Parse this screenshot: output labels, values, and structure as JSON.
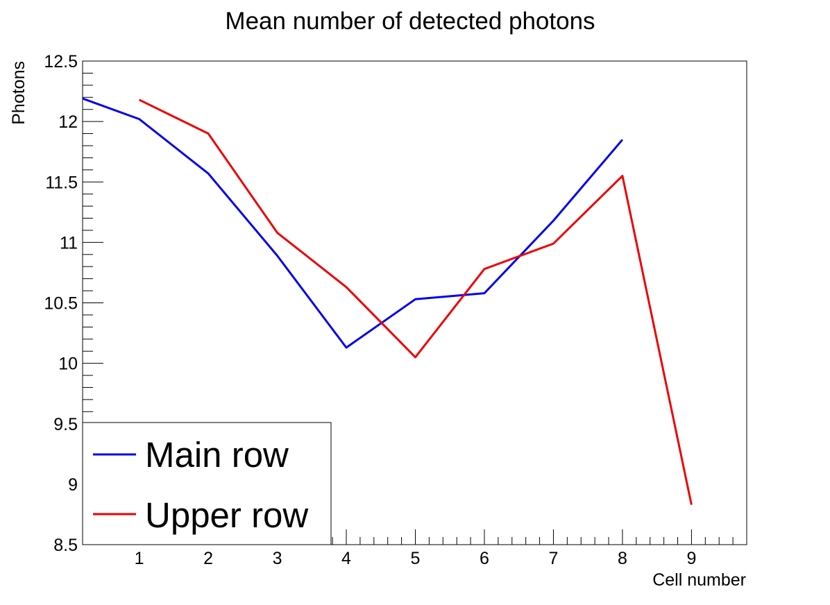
{
  "chart_data": {
    "type": "line",
    "title": "Mean number of detected photons",
    "xlabel": "Cell number",
    "ylabel": "Photons",
    "xlim": [
      0.18,
      9.8
    ],
    "ylim": [
      8.5,
      12.5
    ],
    "x_ticks": [
      1,
      2,
      3,
      4,
      5,
      6,
      7,
      8,
      9
    ],
    "x_tick_labels": [
      "1",
      "2",
      "3",
      "4",
      "5",
      "6",
      "7",
      "8",
      "9"
    ],
    "y_ticks": [
      8.5,
      9,
      9.5,
      10,
      10.5,
      11,
      11.5,
      12,
      12.5
    ],
    "y_tick_labels": [
      "8.5",
      "9",
      "9.5",
      "10",
      "10.5",
      "11",
      "11.5",
      "12",
      "12.5"
    ],
    "grid": false,
    "legend_position": "bottom-left",
    "series": [
      {
        "name": "Main row",
        "color": "#0000ee",
        "x": [
          0.18,
          1,
          2,
          3,
          4,
          5,
          6,
          7,
          8
        ],
        "values": [
          12.19,
          12.02,
          11.57,
          10.89,
          10.13,
          10.53,
          10.58,
          11.18,
          11.85
        ]
      },
      {
        "name": "Upper row",
        "color": "#ee0000",
        "x": [
          1,
          2,
          3,
          4,
          5,
          6,
          7,
          8,
          9
        ],
        "values": [
          12.18,
          11.9,
          11.08,
          10.63,
          10.05,
          10.78,
          10.99,
          11.55,
          8.83
        ]
      }
    ]
  }
}
